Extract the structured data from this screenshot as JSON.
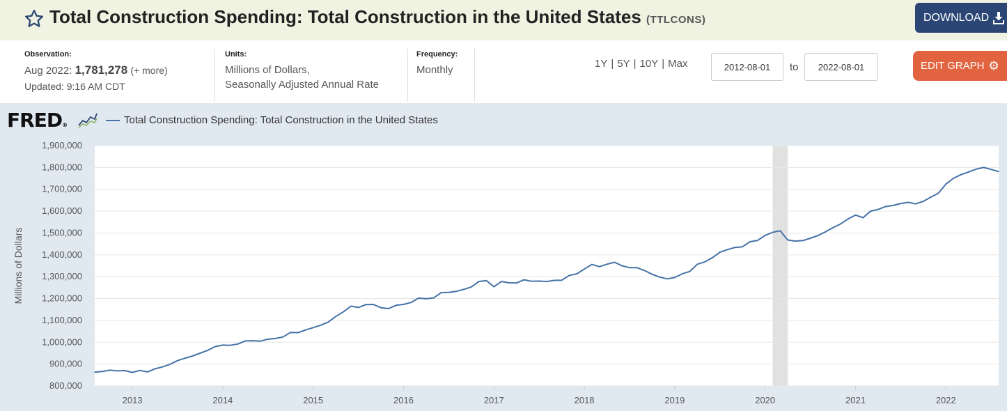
{
  "header": {
    "title": "Total Construction Spending: Total Construction in the United States",
    "series_id": "(TTLCONS)",
    "download_label": "DOWNLOAD"
  },
  "meta": {
    "observation_label": "Observation:",
    "observation_date": "Aug 2022:",
    "observation_value": "1,781,278",
    "observation_more": "(+ more)",
    "updated": "Updated: 9:16 AM CDT",
    "units_label": "Units:",
    "units_line1": "Millions of Dollars,",
    "units_line2": "Seasonally Adjusted Annual Rate",
    "frequency_label": "Frequency:",
    "frequency": "Monthly"
  },
  "controls": {
    "ranges": [
      "1Y",
      "5Y",
      "10Y",
      "Max"
    ],
    "date_from": "2012-08-01",
    "date_to": "2022-08-01",
    "to_label": "to",
    "edit_graph_label": "EDIT GRAPH"
  },
  "colors": {
    "header_bg": "#f0f2e2",
    "download_btn": "#2b4674",
    "edit_btn": "#e2633f",
    "series": "#4572a7",
    "chart_bg": "#e1e9f0",
    "recession": "#e1e1e1"
  },
  "chart_data": {
    "type": "line",
    "legend": "Total Construction Spending: Total Construction in the United States",
    "ylabel": "Millions of Dollars",
    "ylim": [
      800000,
      1900000
    ],
    "yticks": [
      {
        "v": 800000,
        "label": "800,000"
      },
      {
        "v": 900000,
        "label": "900,000"
      },
      {
        "v": 1000000,
        "label": "1,000,000"
      },
      {
        "v": 1100000,
        "label": "1,100,000"
      },
      {
        "v": 1200000,
        "label": "1,200,000"
      },
      {
        "v": 1300000,
        "label": "1,300,000"
      },
      {
        "v": 1400000,
        "label": "1,400,000"
      },
      {
        "v": 1500000,
        "label": "1,500,000"
      },
      {
        "v": 1600000,
        "label": "1,600,000"
      },
      {
        "v": 1700000,
        "label": "1,700,000"
      },
      {
        "v": 1800000,
        "label": "1,800,000"
      },
      {
        "v": 1900000,
        "label": "1,900,000"
      }
    ],
    "xticks": [
      "2013",
      "2014",
      "2015",
      "2016",
      "2017",
      "2018",
      "2019",
      "2020",
      "2021",
      "2022"
    ],
    "x_range": [
      "2012-08",
      "2022-08"
    ],
    "recession": [
      "2020-02",
      "2020-04"
    ],
    "series": [
      {
        "name": "Total Construction Spending: Total Construction in the United States",
        "x": "2012-08",
        "y": 863000
      },
      {
        "name": "",
        "x": "2012-09",
        "y": 866000
      },
      {
        "name": "",
        "x": "2012-10",
        "y": 872000
      },
      {
        "name": "",
        "x": "2012-11",
        "y": 869000
      },
      {
        "name": "",
        "x": "2012-12",
        "y": 870000
      },
      {
        "name": "",
        "x": "2013-01",
        "y": 862000
      },
      {
        "name": "",
        "x": "2013-02",
        "y": 871000
      },
      {
        "name": "",
        "x": "2013-03",
        "y": 864000
      },
      {
        "name": "",
        "x": "2013-04",
        "y": 878000
      },
      {
        "name": "",
        "x": "2013-05",
        "y": 887000
      },
      {
        "name": "",
        "x": "2013-06",
        "y": 899000
      },
      {
        "name": "",
        "x": "2013-07",
        "y": 916000
      },
      {
        "name": "",
        "x": "2013-08",
        "y": 927000
      },
      {
        "name": "",
        "x": "2013-09",
        "y": 937000
      },
      {
        "name": "",
        "x": "2013-10",
        "y": 950000
      },
      {
        "name": "",
        "x": "2013-11",
        "y": 963000
      },
      {
        "name": "",
        "x": "2013-12",
        "y": 980000
      },
      {
        "name": "",
        "x": "2014-01",
        "y": 987000
      },
      {
        "name": "",
        "x": "2014-02",
        "y": 986000
      },
      {
        "name": "",
        "x": "2014-03",
        "y": 992000
      },
      {
        "name": "",
        "x": "2014-04",
        "y": 1006000
      },
      {
        "name": "",
        "x": "2014-05",
        "y": 1007000
      },
      {
        "name": "",
        "x": "2014-06",
        "y": 1005000
      },
      {
        "name": "",
        "x": "2014-07",
        "y": 1014000
      },
      {
        "name": "",
        "x": "2014-08",
        "y": 1017000
      },
      {
        "name": "",
        "x": "2014-09",
        "y": 1024000
      },
      {
        "name": "",
        "x": "2014-10",
        "y": 1045000
      },
      {
        "name": "",
        "x": "2014-11",
        "y": 1044000
      },
      {
        "name": "",
        "x": "2014-12",
        "y": 1056000
      },
      {
        "name": "",
        "x": "2015-01",
        "y": 1067000
      },
      {
        "name": "",
        "x": "2015-02",
        "y": 1078000
      },
      {
        "name": "",
        "x": "2015-03",
        "y": 1092000
      },
      {
        "name": "",
        "x": "2015-04",
        "y": 1118000
      },
      {
        "name": "",
        "x": "2015-05",
        "y": 1139000
      },
      {
        "name": "",
        "x": "2015-06",
        "y": 1165000
      },
      {
        "name": "",
        "x": "2015-07",
        "y": 1159000
      },
      {
        "name": "",
        "x": "2015-08",
        "y": 1172000
      },
      {
        "name": "",
        "x": "2015-09",
        "y": 1173000
      },
      {
        "name": "",
        "x": "2015-10",
        "y": 1158000
      },
      {
        "name": "",
        "x": "2015-11",
        "y": 1154000
      },
      {
        "name": "",
        "x": "2015-12",
        "y": 1169000
      },
      {
        "name": "",
        "x": "2016-01",
        "y": 1173000
      },
      {
        "name": "",
        "x": "2016-02",
        "y": 1182000
      },
      {
        "name": "",
        "x": "2016-03",
        "y": 1202000
      },
      {
        "name": "",
        "x": "2016-04",
        "y": 1199000
      },
      {
        "name": "",
        "x": "2016-05",
        "y": 1203000
      },
      {
        "name": "",
        "x": "2016-06",
        "y": 1227000
      },
      {
        "name": "",
        "x": "2016-07",
        "y": 1228000
      },
      {
        "name": "",
        "x": "2016-08",
        "y": 1233000
      },
      {
        "name": "",
        "x": "2016-09",
        "y": 1242000
      },
      {
        "name": "",
        "x": "2016-10",
        "y": 1253000
      },
      {
        "name": "",
        "x": "2016-11",
        "y": 1278000
      },
      {
        "name": "",
        "x": "2016-12",
        "y": 1282000
      },
      {
        "name": "",
        "x": "2017-01",
        "y": 1254000
      },
      {
        "name": "",
        "x": "2017-02",
        "y": 1278000
      },
      {
        "name": "",
        "x": "2017-03",
        "y": 1272000
      },
      {
        "name": "",
        "x": "2017-04",
        "y": 1271000
      },
      {
        "name": "",
        "x": "2017-05",
        "y": 1286000
      },
      {
        "name": "",
        "x": "2017-06",
        "y": 1279000
      },
      {
        "name": "",
        "x": "2017-07",
        "y": 1280000
      },
      {
        "name": "",
        "x": "2017-08",
        "y": 1278000
      },
      {
        "name": "",
        "x": "2017-09",
        "y": 1283000
      },
      {
        "name": "",
        "x": "2017-10",
        "y": 1284000
      },
      {
        "name": "",
        "x": "2017-11",
        "y": 1306000
      },
      {
        "name": "",
        "x": "2017-12",
        "y": 1313000
      },
      {
        "name": "",
        "x": "2018-01",
        "y": 1335000
      },
      {
        "name": "",
        "x": "2018-02",
        "y": 1356000
      },
      {
        "name": "",
        "x": "2018-03",
        "y": 1346000
      },
      {
        "name": "",
        "x": "2018-04",
        "y": 1357000
      },
      {
        "name": "",
        "x": "2018-05",
        "y": 1366000
      },
      {
        "name": "",
        "x": "2018-06",
        "y": 1350000
      },
      {
        "name": "",
        "x": "2018-07",
        "y": 1341000
      },
      {
        "name": "",
        "x": "2018-08",
        "y": 1341000
      },
      {
        "name": "",
        "x": "2018-09",
        "y": 1328000
      },
      {
        "name": "",
        "x": "2018-10",
        "y": 1311000
      },
      {
        "name": "",
        "x": "2018-11",
        "y": 1298000
      },
      {
        "name": "",
        "x": "2018-12",
        "y": 1290000
      },
      {
        "name": "",
        "x": "2019-01",
        "y": 1296000
      },
      {
        "name": "",
        "x": "2019-02",
        "y": 1313000
      },
      {
        "name": "",
        "x": "2019-03",
        "y": 1324000
      },
      {
        "name": "",
        "x": "2019-04",
        "y": 1357000
      },
      {
        "name": "",
        "x": "2019-05",
        "y": 1368000
      },
      {
        "name": "",
        "x": "2019-06",
        "y": 1387000
      },
      {
        "name": "",
        "x": "2019-07",
        "y": 1412000
      },
      {
        "name": "",
        "x": "2019-08",
        "y": 1424000
      },
      {
        "name": "",
        "x": "2019-09",
        "y": 1434000
      },
      {
        "name": "",
        "x": "2019-10",
        "y": 1437000
      },
      {
        "name": "",
        "x": "2019-11",
        "y": 1460000
      },
      {
        "name": "",
        "x": "2019-12",
        "y": 1466000
      },
      {
        "name": "",
        "x": "2020-01",
        "y": 1489000
      },
      {
        "name": "",
        "x": "2020-02",
        "y": 1503000
      },
      {
        "name": "",
        "x": "2020-03",
        "y": 1510000
      },
      {
        "name": "",
        "x": "2020-04",
        "y": 1468000
      },
      {
        "name": "",
        "x": "2020-05",
        "y": 1463000
      },
      {
        "name": "",
        "x": "2020-06",
        "y": 1465000
      },
      {
        "name": "",
        "x": "2020-07",
        "y": 1476000
      },
      {
        "name": "",
        "x": "2020-08",
        "y": 1488000
      },
      {
        "name": "",
        "x": "2020-09",
        "y": 1505000
      },
      {
        "name": "",
        "x": "2020-10",
        "y": 1524000
      },
      {
        "name": "",
        "x": "2020-11",
        "y": 1541000
      },
      {
        "name": "",
        "x": "2020-12",
        "y": 1564000
      },
      {
        "name": "",
        "x": "2021-01",
        "y": 1582000
      },
      {
        "name": "",
        "x": "2021-02",
        "y": 1570000
      },
      {
        "name": "",
        "x": "2021-03",
        "y": 1600000
      },
      {
        "name": "",
        "x": "2021-04",
        "y": 1608000
      },
      {
        "name": "",
        "x": "2021-05",
        "y": 1621000
      },
      {
        "name": "",
        "x": "2021-06",
        "y": 1626000
      },
      {
        "name": "",
        "x": "2021-07",
        "y": 1635000
      },
      {
        "name": "",
        "x": "2021-08",
        "y": 1640000
      },
      {
        "name": "",
        "x": "2021-09",
        "y": 1633000
      },
      {
        "name": "",
        "x": "2021-10",
        "y": 1645000
      },
      {
        "name": "",
        "x": "2021-11",
        "y": 1664000
      },
      {
        "name": "",
        "x": "2021-12",
        "y": 1682000
      },
      {
        "name": "",
        "x": "2022-01",
        "y": 1724000
      },
      {
        "name": "",
        "x": "2022-02",
        "y": 1750000
      },
      {
        "name": "",
        "x": "2022-03",
        "y": 1767000
      },
      {
        "name": "",
        "x": "2022-04",
        "y": 1779000
      },
      {
        "name": "",
        "x": "2022-05",
        "y": 1792000
      },
      {
        "name": "",
        "x": "2022-06",
        "y": 1800000
      },
      {
        "name": "",
        "x": "2022-07",
        "y": 1791000
      },
      {
        "name": "",
        "x": "2022-08",
        "y": 1781000
      }
    ]
  }
}
